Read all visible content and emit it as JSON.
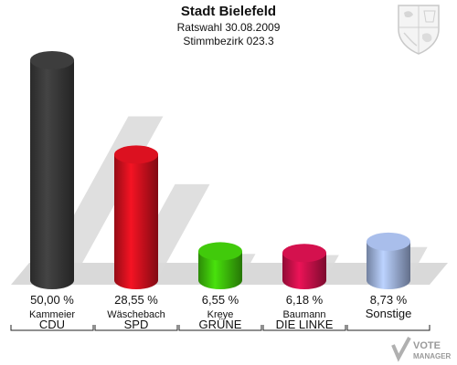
{
  "header": {
    "title": "Stadt Bielefeld",
    "subtitle": "Ratswahl 30.08.2009",
    "district": "Stimmbezirk 023.3"
  },
  "colors": {
    "CDU": "#3a3a3a",
    "SPD": "#d0101e",
    "GRÜNE": "#3dbf0a",
    "DIE LINKE": "#c8104a",
    "Sonstige": "#9fb3de",
    "shadow": "#d9d9d9"
  },
  "watermark": {
    "line1": "VOTE",
    "line2": "MANAGER"
  },
  "chart_data": {
    "type": "bar",
    "title": "Stadt Bielefeld",
    "subtitle": "Ratswahl 30.08.2009 — Stimmbezirk 023.3",
    "categories": [
      "CDU",
      "SPD",
      "GRÜNE",
      "DIE LINKE",
      "Sonstige"
    ],
    "candidates": [
      "Kammeier",
      "Wäschebach",
      "Kreye",
      "Baumann",
      ""
    ],
    "values": [
      50.0,
      28.55,
      6.55,
      6.18,
      8.73
    ],
    "labels": [
      "50,00 %",
      "28,55 %",
      "6,55 %",
      "6,18 %",
      "8,73 %"
    ],
    "ylim": [
      0,
      50
    ]
  }
}
